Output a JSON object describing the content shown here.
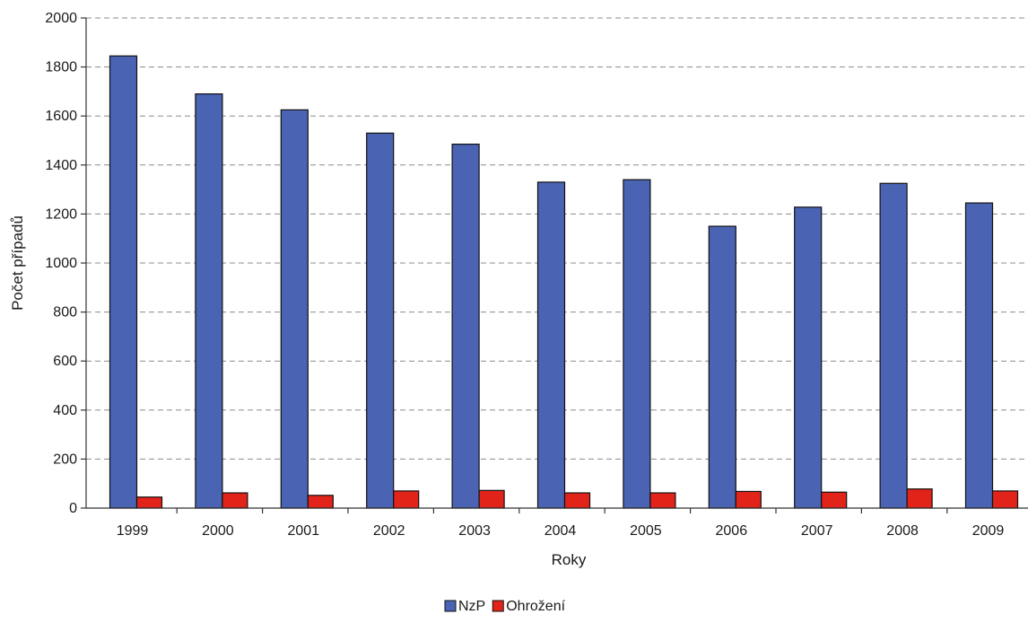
{
  "chart_data": {
    "type": "bar",
    "title": "",
    "xlabel": "Roky",
    "ylabel": "Počet případů",
    "ylim": [
      0,
      2000
    ],
    "yticks": [
      0,
      200,
      400,
      600,
      800,
      1000,
      1200,
      1400,
      1600,
      1800,
      2000
    ],
    "grid": true,
    "legend_position": "bottom-center",
    "categories": [
      "1999",
      "2000",
      "2001",
      "2002",
      "2003",
      "2004",
      "2005",
      "2006",
      "2007",
      "2008",
      "2009"
    ],
    "series": [
      {
        "name": "NzP",
        "color": "#4a63b3",
        "values": [
          1845,
          1690,
          1625,
          1530,
          1485,
          1330,
          1340,
          1150,
          1228,
          1325,
          1245
        ]
      },
      {
        "name": "Ohrožení",
        "color": "#e2231a",
        "values": [
          45,
          62,
          52,
          70,
          72,
          62,
          62,
          68,
          65,
          78,
          70
        ]
      }
    ]
  }
}
